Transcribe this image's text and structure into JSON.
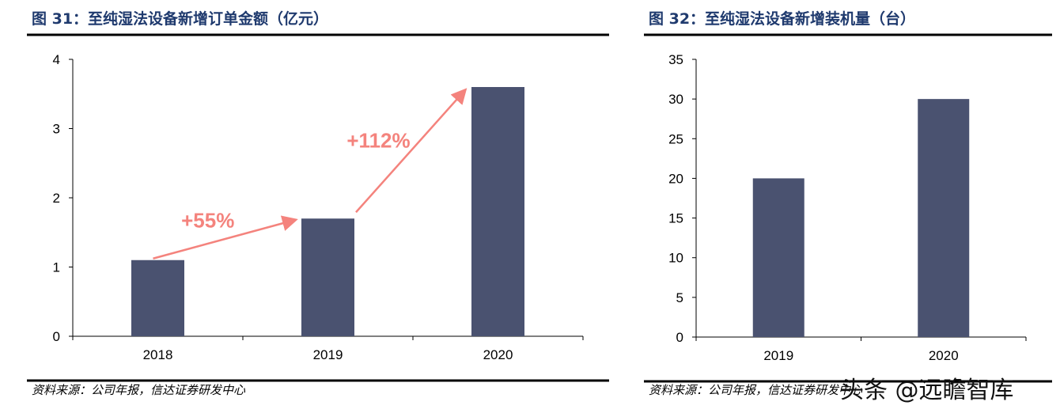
{
  "chart_data": [
    {
      "type": "bar",
      "title": "图 31：至纯湿法设备新增订单金额（亿元）",
      "categories": [
        "2018",
        "2019",
        "2020"
      ],
      "values": [
        1.1,
        1.7,
        3.6
      ],
      "ylim": [
        0,
        4
      ],
      "yticks": [
        0,
        1,
        2,
        3,
        4
      ],
      "grid": false,
      "bar_color": "#4a5270",
      "annotations": [
        {
          "text": "+55%",
          "from": "2018",
          "to": "2019"
        },
        {
          "text": "+112%",
          "from": "2019",
          "to": "2020"
        }
      ],
      "annotation_color": "#f4837d",
      "source": "资料来源：公司年报，信达证券研发中心"
    },
    {
      "type": "bar",
      "title": "图 32：至纯湿法设备新增装机量（台）",
      "categories": [
        "2019",
        "2020"
      ],
      "values": [
        20,
        30
      ],
      "ylim": [
        0,
        35
      ],
      "yticks": [
        0,
        5,
        10,
        15,
        20,
        25,
        30,
        35
      ],
      "grid": false,
      "bar_color": "#4a5270",
      "source": "资料来源：公司年报，信达证券研发中心"
    }
  ],
  "watermark": "头条 @远瞻智库"
}
